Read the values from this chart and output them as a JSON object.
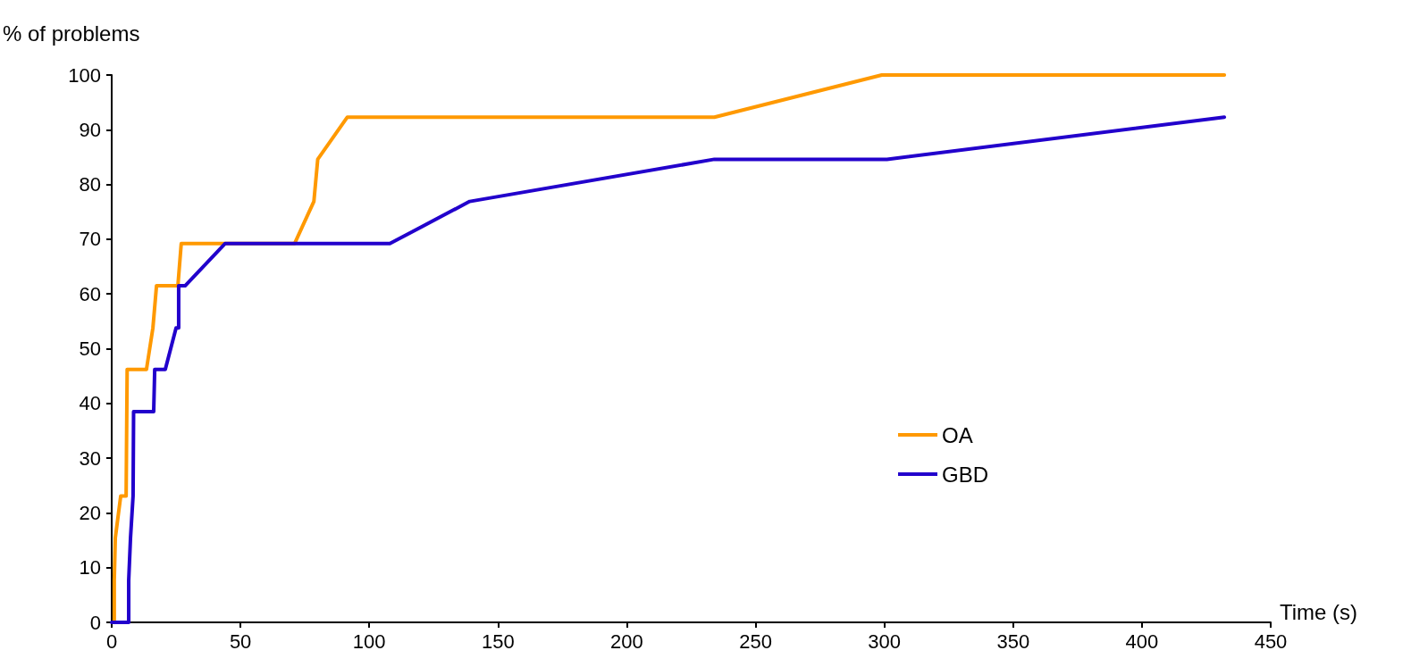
{
  "chart_data": {
    "type": "line",
    "xlabel": "Time (s)",
    "ylabel": "% of problems",
    "xlim": [
      0,
      450
    ],
    "xticks": [
      0,
      50,
      100,
      150,
      200,
      250,
      300,
      350,
      400,
      450
    ],
    "ylim": [
      0,
      100
    ],
    "yticks": [
      0,
      10,
      20,
      30,
      40,
      50,
      60,
      70,
      80,
      90,
      100
    ],
    "grid": false,
    "legend": "right",
    "marker": "none",
    "line_style": "solid",
    "series": [
      {
        "name": "OA",
        "color": "#ff9900",
        "x": [
          1,
          1,
          1.4,
          3.5,
          5.6,
          6,
          13.5,
          16,
          17.4,
          25.7,
          27,
          71,
          78.5,
          80,
          91.5,
          234,
          299,
          432
        ],
        "values": [
          0,
          7.7,
          15.4,
          23.1,
          23.1,
          46.2,
          46.2,
          53.8,
          61.5,
          61.5,
          69.2,
          69.2,
          76.9,
          84.6,
          92.3,
          92.3,
          100,
          100
        ]
      },
      {
        "name": "GBD",
        "color": "#2200cc",
        "x": [
          0,
          6.6,
          6.6,
          7.3,
          8.3,
          8.5,
          16.3,
          16.7,
          20.8,
          25,
          26,
          26,
          28.5,
          44,
          108,
          139,
          234,
          301,
          432
        ],
        "values": [
          0,
          0,
          7.7,
          15.4,
          23.1,
          38.5,
          38.5,
          46.2,
          46.2,
          53.8,
          53.8,
          61.5,
          61.5,
          69.2,
          69.2,
          76.9,
          84.6,
          84.6,
          92.3
        ]
      }
    ]
  }
}
